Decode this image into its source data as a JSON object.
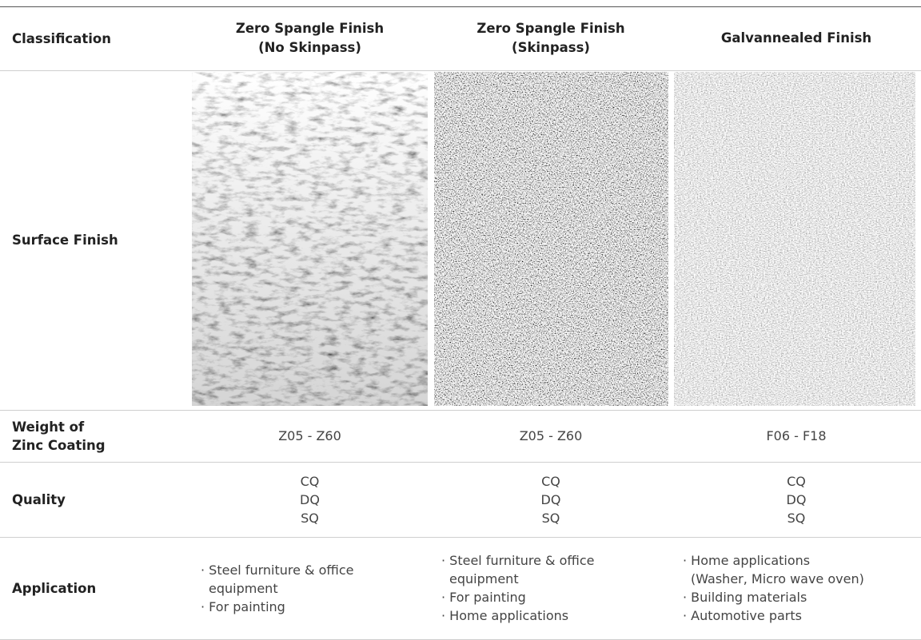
{
  "table": {
    "header": [
      [
        "Classification"
      ],
      [
        "Zero Spangle Finish",
        "(No Skinpass)"
      ],
      [
        "Zero Spangle Finish",
        "(Skinpass)"
      ],
      [
        "Galvannealed Finish"
      ]
    ],
    "rows": [
      {
        "label": [
          "Surface Finish"
        ]
      },
      {
        "label": [
          "Weight of",
          "Zinc Coating"
        ],
        "cells": [
          [
            "Z05 - Z60"
          ],
          [
            "Z05 - Z60"
          ],
          [
            "F06 - F18"
          ]
        ]
      },
      {
        "label": [
          "Quality"
        ],
        "cells": [
          [
            "CQ",
            "DQ",
            "SQ"
          ],
          [
            "CQ",
            "DQ",
            "SQ"
          ],
          [
            "CQ",
            "DQ",
            "SQ"
          ]
        ]
      },
      {
        "label": [
          "Application"
        ],
        "items": [
          [
            [
              "· Steel furniture & office",
              "equipment"
            ],
            [
              "· For painting"
            ]
          ],
          [
            [
              "· Steel furniture & office",
              "equipment"
            ],
            [
              "· For painting"
            ],
            [
              "· Home applications"
            ]
          ],
          [
            [
              "· Home applications",
              "(Washer, Micro wave oven)"
            ],
            [
              "· Building materials"
            ],
            [
              "· Automotive parts"
            ]
          ]
        ]
      }
    ]
  }
}
